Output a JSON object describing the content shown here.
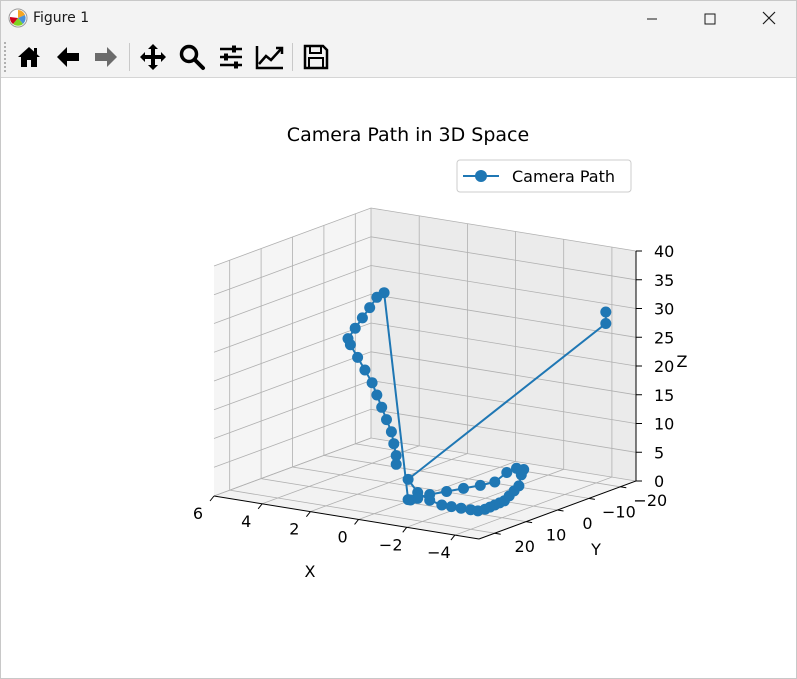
{
  "window": {
    "title": "Figure 1",
    "icon": "matplotlib-logo-icon",
    "controls": [
      "minimize-icon",
      "maximize-icon",
      "close-icon"
    ]
  },
  "toolbar": {
    "buttons": [
      {
        "name": "home",
        "icon": "home-icon"
      },
      {
        "name": "back",
        "icon": "arrow-left-icon"
      },
      {
        "name": "forward",
        "icon": "arrow-right-icon"
      },
      {
        "name": "pan",
        "icon": "move-icon"
      },
      {
        "name": "zoom",
        "icon": "magnifier-icon"
      },
      {
        "name": "subplots",
        "icon": "sliders-icon"
      },
      {
        "name": "edit-axes",
        "icon": "line-chart-icon"
      },
      {
        "name": "save",
        "icon": "floppy-disk-icon"
      }
    ]
  },
  "colors": {
    "series": "#1f77b4"
  },
  "chart_data": {
    "type": "line",
    "projection": "3d",
    "title": "Camera Path in 3D Space",
    "xlabel": "X",
    "ylabel": "Y",
    "zlabel": "Z",
    "xlim": [
      -5,
      6
    ],
    "ylim": [
      -25,
      25
    ],
    "zlim": [
      0,
      40
    ],
    "xticks": [
      6,
      4,
      2,
      0,
      -2,
      -4
    ],
    "xtick_labels": [
      "6",
      "4",
      "2",
      "0",
      "−2",
      "−4"
    ],
    "yticks": [
      -20,
      -10,
      0,
      10,
      20
    ],
    "ytick_labels": [
      "−20",
      "−10",
      "0",
      "10",
      "20"
    ],
    "zticks": [
      0,
      5,
      10,
      15,
      20,
      25,
      30,
      35,
      40
    ],
    "ztick_labels": [
      "0",
      "5",
      "10",
      "15",
      "20",
      "25",
      "30",
      "35",
      "40"
    ],
    "grid": true,
    "legend": "upper-right",
    "series": [
      {
        "name": "Camera Path",
        "marker": "o",
        "x": [
          -4.4,
          -4.4,
          -0.1,
          -0.5,
          -1.0,
          -1.5,
          -1.9,
          -2.3,
          -2.7,
          -3.0,
          -3.3,
          -3.5,
          -3.7,
          -3.9,
          -4.1,
          -4.3,
          -4.5,
          -4.7,
          -4.8,
          -4.9,
          -4.6,
          -4.2,
          -3.7,
          -3.1,
          -2.4,
          -1.7,
          -1.0,
          -0.5,
          -0.2,
          -0.1,
          3.5,
          3.8,
          4.1,
          4.4,
          4.7,
          5.0,
          4.9,
          4.6,
          4.3,
          4.0,
          3.8,
          3.6,
          3.4,
          3.2,
          3.1,
          3.0,
          3.0
        ],
        "y": [
          -20,
          -20,
          10,
          10,
          10,
          10,
          10,
          10,
          10,
          10,
          10,
          10,
          10,
          10,
          10,
          10,
          10,
          10,
          10,
          10,
          10,
          10,
          10,
          10,
          10,
          10,
          10,
          10,
          10,
          10,
          -10,
          -10,
          -10,
          -10,
          -10,
          -10,
          -10,
          -10,
          -10,
          -10,
          -10,
          -10,
          -10,
          -10,
          -10,
          -10,
          -10
        ],
        "z": [
          30,
          28,
          4,
          2,
          1,
          0.5,
          0.5,
          0.5,
          0.5,
          0.5,
          1,
          1.5,
          2,
          2.5,
          3,
          4,
          5,
          6,
          8,
          9,
          9,
          8,
          6,
          5,
          4,
          3,
          2,
          1,
          0.5,
          0.5,
          30,
          29,
          27,
          25,
          23,
          21,
          20,
          18,
          16,
          14,
          12,
          10,
          8,
          6,
          4,
          2,
          0.5
        ]
      }
    ]
  }
}
